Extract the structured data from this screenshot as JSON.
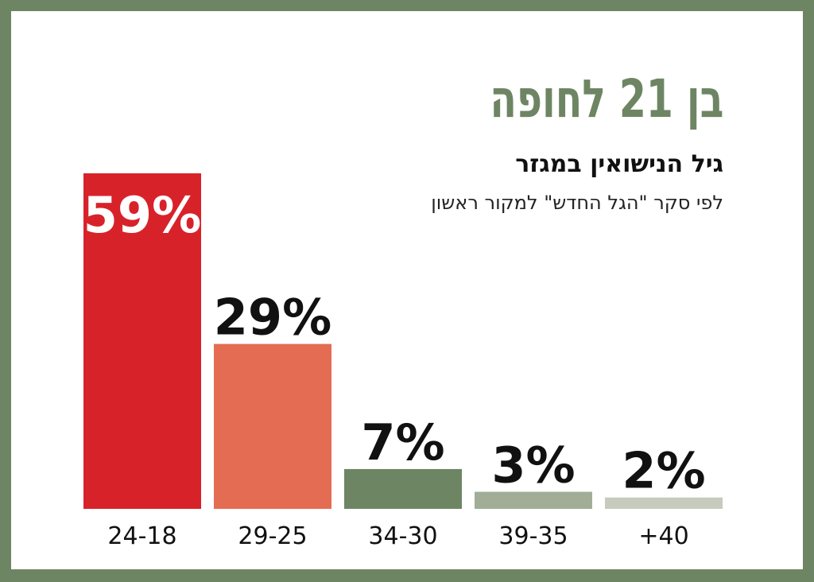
{
  "chart_data": {
    "type": "bar",
    "title": "בן 21 לחופה",
    "subtitle": "גיל הנישואין במגזר",
    "source": "לפי  סקר \"הגל החדש\" למקור ראשון",
    "categories": [
      "24-18",
      "29-25",
      "34-30",
      "39-35",
      "+40"
    ],
    "values": [
      59,
      29,
      7,
      3,
      2
    ],
    "value_labels": [
      "59%",
      "29%",
      "7%",
      "3%",
      "2%"
    ],
    "colors": [
      "#d8222a",
      "#e46c53",
      "#6e8563",
      "#a2ad97",
      "#c6cbbe"
    ],
    "label_colors": [
      "#ffffff",
      "#111111",
      "#111111",
      "#111111",
      "#111111"
    ],
    "ylim": [
      0,
      59
    ],
    "grid": false,
    "legend": "none"
  }
}
